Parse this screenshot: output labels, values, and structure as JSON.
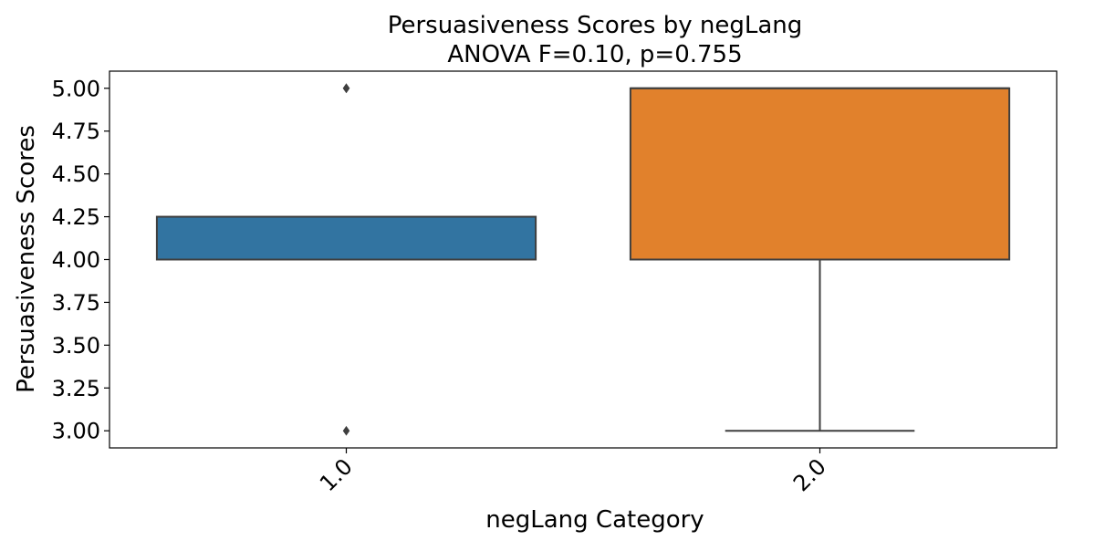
{
  "chart_data": {
    "type": "box",
    "title": "Persuasiveness Scores by negLang",
    "subtitle": "ANOVA F=0.10, p=0.755",
    "xlabel": "negLang Category",
    "ylabel": "Persuasiveness Scores",
    "ylim": [
      2.9,
      5.1
    ],
    "yticks": [
      3.0,
      3.25,
      3.5,
      3.75,
      4.0,
      4.25,
      4.5,
      4.75,
      5.0
    ],
    "ytick_labels": [
      "3.00",
      "3.25",
      "3.50",
      "3.75",
      "4.00",
      "4.25",
      "4.50",
      "4.75",
      "5.00"
    ],
    "categories": [
      "1.0",
      "2.0"
    ],
    "grid": false,
    "boxes": [
      {
        "category": "1.0",
        "color": "#3274a1",
        "q1": 4.0,
        "median": 4.0,
        "q3": 4.25,
        "whisker_low": 4.0,
        "whisker_high": 4.25,
        "outliers": [
          5.0,
          5.0,
          3.0
        ]
      },
      {
        "category": "2.0",
        "color": "#e1812c",
        "q1": 4.0,
        "median": 5.0,
        "q3": 5.0,
        "whisker_low": 3.0,
        "whisker_high": 5.0,
        "outliers": []
      }
    ],
    "line_color": "#3f3f3f"
  }
}
